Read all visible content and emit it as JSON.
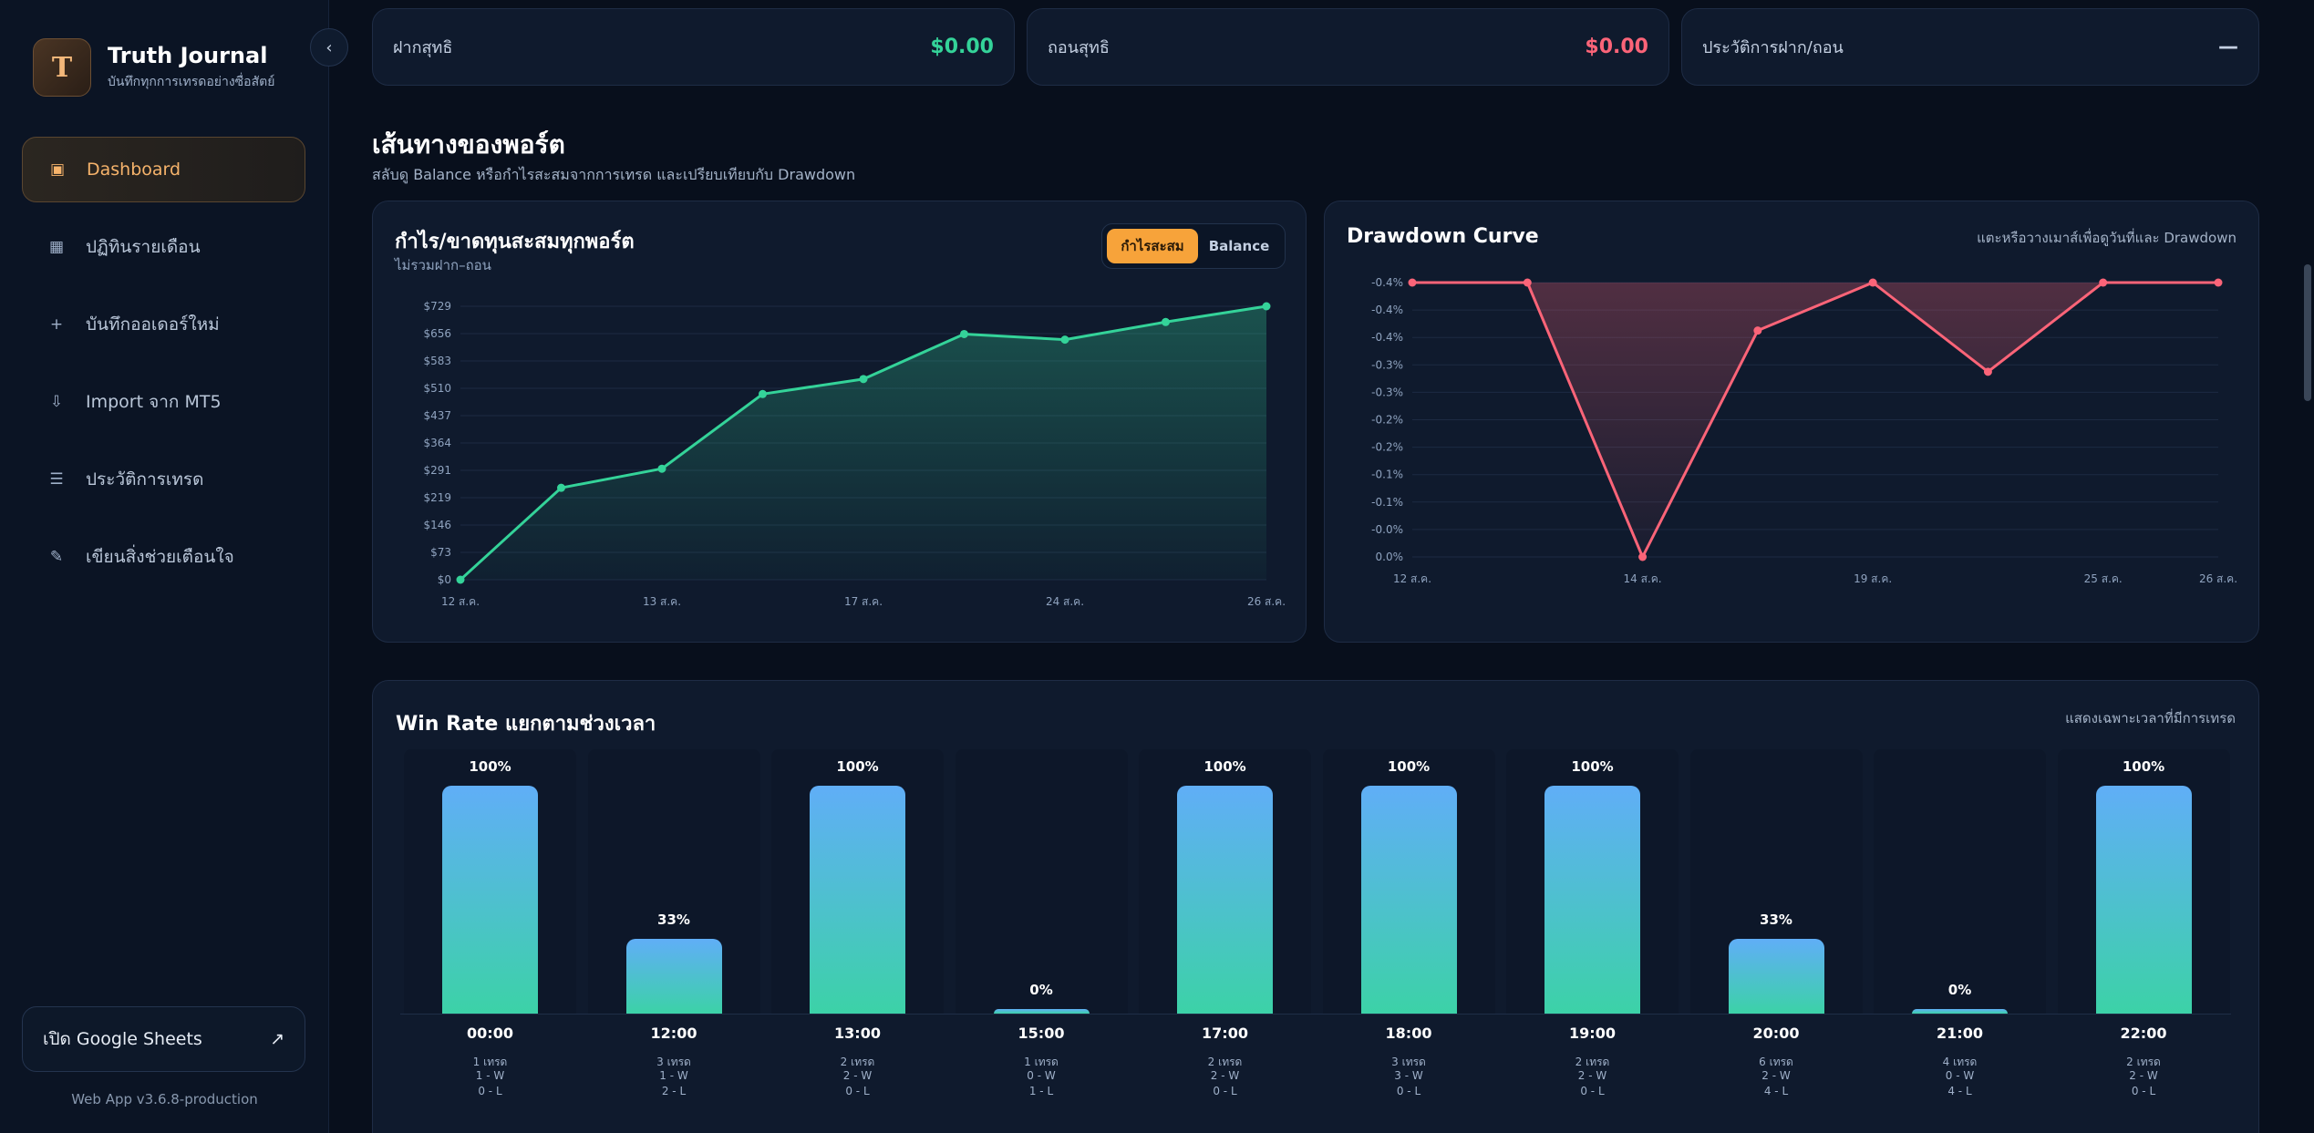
{
  "app": {
    "title": "Truth Journal",
    "subtitle": "บันทึกทุกการเทรดอย่างซื่อสัตย์",
    "logo_letter": "T",
    "collapse_icon": "‹",
    "version": "Web App v3.6.8-production",
    "google_sheets_label": "เปิด Google Sheets",
    "google_sheets_icon": "↗"
  },
  "nav": [
    {
      "label": "Dashboard",
      "icon": "▣",
      "icon_name": "dashboard-icon",
      "active": true
    },
    {
      "label": "ปฏิทินรายเดือน",
      "icon": "▦",
      "icon_name": "calendar-icon",
      "active": false
    },
    {
      "label": "บันทึกออเดอร์ใหม่",
      "icon": "+",
      "icon_name": "plus-icon",
      "active": false
    },
    {
      "label": "Import จาก MT5",
      "icon": "⇩",
      "icon_name": "import-icon",
      "active": false
    },
    {
      "label": "ประวัติการเทรด",
      "icon": "☰",
      "icon_name": "list-icon",
      "active": false
    },
    {
      "label": "เขียนสิ่งช่วยเตือนใจ",
      "icon": "✎",
      "icon_name": "pencil-icon",
      "active": false
    }
  ],
  "stats": {
    "deposit": {
      "label": "ฝากสุทธิ",
      "value": "$0.00"
    },
    "withdraw": {
      "label": "ถอนสุทธิ",
      "value": "$0.00"
    },
    "history": {
      "label": "ประวัติการฝาก/ถอน",
      "value": "—"
    }
  },
  "section": {
    "title": "เส้นทางของพอร์ต",
    "subtitle": "สลับดู Balance หรือกำไรสะสมจากการเทรด และเปรียบเทียบกับ Drawdown"
  },
  "colors": {
    "accent": "#f7a33a",
    "green": "#34d399",
    "red": "#fb6478",
    "blue": "#60aef7"
  },
  "equity_card": {
    "title": "กำไร/ขาดทุนสะสมทุกพอร์ต",
    "subtitle": "ไม่รวมฝาก–ถอน",
    "toggle_on": "กำไรสะสม",
    "toggle_off": "Balance"
  },
  "drawdown_card": {
    "title": "Drawdown Curve",
    "hint": "แตะหรือวางเมาส์เพื่อดูวันที่และ Drawdown"
  },
  "chart_data": [
    {
      "type": "area",
      "title": "กำไร/ขาดทุนสะสมทุกพอร์ต",
      "y_ticks": [
        "$0",
        "$73",
        "$146",
        "$219",
        "$291",
        "$364",
        "$437",
        "$510",
        "$583",
        "$656",
        "$729"
      ],
      "ylim": [
        0,
        729
      ],
      "x_tick_labels": [
        "12 ส.ค.",
        "13 ส.ค.",
        "17 ส.ค.",
        "24 ส.ค.",
        "26 ส.ค."
      ],
      "x_tick_index": [
        0,
        2,
        4,
        6,
        8
      ],
      "values": [
        0,
        245,
        296,
        495,
        535,
        655,
        640,
        687,
        729
      ],
      "color": "#34d399",
      "grid": true
    },
    {
      "type": "area",
      "title": "Drawdown Curve",
      "y_ticks": [
        "0.0%",
        "-0.0%",
        "-0.1%",
        "-0.1%",
        "-0.2%",
        "-0.2%",
        "-0.3%",
        "-0.3%",
        "-0.4%",
        "-0.4%",
        "-0.4%"
      ],
      "ylim": [
        -0.4,
        0
      ],
      "x_tick_labels": [
        "12 ส.ค.",
        "14 ส.ค.",
        "19 ส.ค.",
        "25 ส.ค.",
        "26 ส.ค."
      ],
      "x_tick_index": [
        0,
        2,
        4,
        6,
        7
      ],
      "values": [
        0.0,
        0.0,
        -0.4,
        -0.07,
        0.0,
        -0.13,
        0.0,
        0.0
      ],
      "color": "#fb6478",
      "grid": true
    },
    {
      "type": "bar",
      "title": "Win Rate แยกตามช่วงเวลา",
      "categories": [
        "00:00",
        "12:00",
        "13:00",
        "15:00",
        "17:00",
        "18:00",
        "19:00",
        "20:00",
        "21:00",
        "22:00"
      ],
      "values": [
        100,
        33,
        100,
        0,
        100,
        100,
        100,
        33,
        0,
        100
      ],
      "ylim": [
        0,
        100
      ]
    }
  ],
  "winrate": {
    "title": "Win Rate แยกตามช่วงเวลา",
    "hint": "แสดงเฉพาะเวลาที่มีการเทรด",
    "slots": [
      {
        "time": "00:00",
        "pct_label": "100%",
        "pct": 100,
        "trades": "1 เทรด",
        "wins": "1 - W",
        "losses": "0 - L"
      },
      {
        "time": "12:00",
        "pct_label": "33%",
        "pct": 33,
        "trades": "3 เทรด",
        "wins": "1 - W",
        "losses": "2 - L"
      },
      {
        "time": "13:00",
        "pct_label": "100%",
        "pct": 100,
        "trades": "2 เทรด",
        "wins": "2 - W",
        "losses": "0 - L"
      },
      {
        "time": "15:00",
        "pct_label": "0%",
        "pct": 0,
        "trades": "1 เทรด",
        "wins": "0 - W",
        "losses": "1 - L"
      },
      {
        "time": "17:00",
        "pct_label": "100%",
        "pct": 100,
        "trades": "2 เทรด",
        "wins": "2 - W",
        "losses": "0 - L"
      },
      {
        "time": "18:00",
        "pct_label": "100%",
        "pct": 100,
        "trades": "3 เทรด",
        "wins": "3 - W",
        "losses": "0 - L"
      },
      {
        "time": "19:00",
        "pct_label": "100%",
        "pct": 100,
        "trades": "2 เทรด",
        "wins": "2 - W",
        "losses": "0 - L"
      },
      {
        "time": "20:00",
        "pct_label": "33%",
        "pct": 33,
        "trades": "6 เทรด",
        "wins": "2 - W",
        "losses": "4 - L"
      },
      {
        "time": "21:00",
        "pct_label": "0%",
        "pct": 0,
        "trades": "4 เทรด",
        "wins": "0 - W",
        "losses": "4 - L"
      },
      {
        "time": "22:00",
        "pct_label": "100%",
        "pct": 100,
        "trades": "2 เทรด",
        "wins": "2 - W",
        "losses": "0 - L"
      }
    ]
  }
}
